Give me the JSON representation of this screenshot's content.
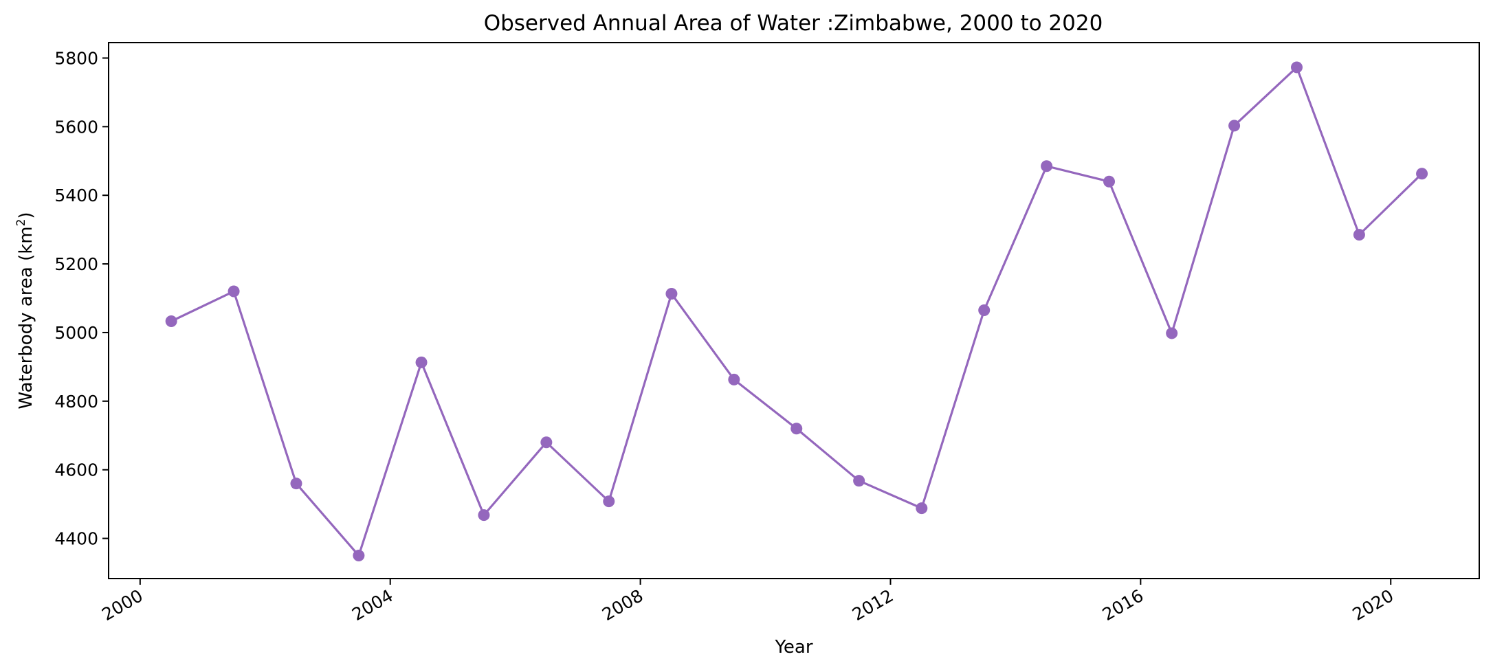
{
  "chart_data": {
    "type": "line",
    "title": "Observed Annual Area of Water :Zimbabwe, 2000 to 2020",
    "xlabel": "Year",
    "ylabel": "Waterbody area (km",
    "ylabel_sup": "2",
    "ylabel_end": ")",
    "x": [
      "2000-07-01",
      "2001-07-01",
      "2002-07-01",
      "2003-07-01",
      "2004-07-01",
      "2005-07-01",
      "2006-07-01",
      "2007-07-01",
      "2008-07-01",
      "2009-07-01",
      "2010-07-01",
      "2011-07-01",
      "2012-07-01",
      "2013-07-01",
      "2014-07-01",
      "2015-07-01",
      "2016-07-01",
      "2017-07-01",
      "2018-07-01",
      "2019-07-01",
      "2020-07-01"
    ],
    "series": [
      {
        "values": [
          5033,
          5120,
          4560,
          4350,
          4913,
          4468,
          4680,
          4508,
          5113,
          4863,
          4720,
          4568,
          4488,
          5065,
          5485,
          5440,
          4998,
          5603,
          5773,
          5285,
          5463
        ],
        "color": "#9467bd",
        "marker": "circle"
      }
    ],
    "xlim": [
      "1999-07-01",
      "2021-06-01"
    ],
    "ylim": [
      4283,
      5845
    ],
    "x_ticks": [
      "2000",
      "2004",
      "2008",
      "2012",
      "2016",
      "2020"
    ],
    "y_ticks": [
      4400,
      4600,
      4800,
      5000,
      5200,
      5400,
      5600,
      5800
    ],
    "grid": false
  }
}
